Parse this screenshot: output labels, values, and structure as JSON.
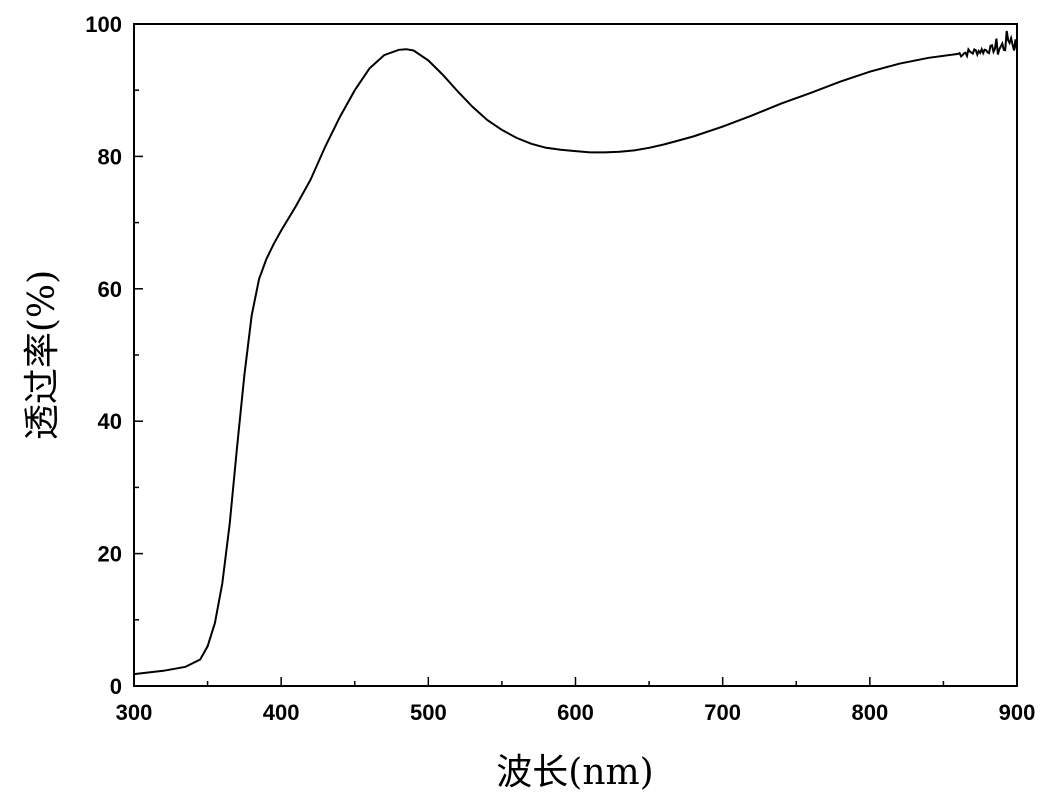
{
  "chart_data": {
    "type": "line",
    "xlabel": "波长(nm)",
    "ylabel": "透过率(%)",
    "xlim": [
      300,
      900
    ],
    "ylim": [
      0,
      100
    ],
    "x_ticks": [
      300,
      400,
      500,
      600,
      700,
      800,
      900
    ],
    "y_ticks": [
      0,
      20,
      40,
      60,
      80,
      100
    ],
    "grid": false,
    "series": [
      {
        "x": [
          300,
          320,
          335,
          345,
          350,
          355,
          360,
          365,
          370,
          375,
          380,
          385,
          390,
          395,
          400,
          410,
          420,
          430,
          440,
          450,
          460,
          470,
          480,
          485,
          490,
          500,
          510,
          520,
          530,
          540,
          550,
          560,
          570,
          580,
          590,
          600,
          610,
          620,
          630,
          640,
          650,
          660,
          680,
          700,
          720,
          740,
          760,
          780,
          800,
          820,
          840,
          860,
          880,
          890,
          895,
          900
        ],
        "y": [
          1.8,
          2.3,
          2.9,
          4.0,
          6.0,
          9.5,
          15.5,
          24.5,
          36.0,
          47.0,
          56.0,
          61.5,
          64.5,
          66.8,
          68.8,
          72.5,
          76.5,
          81.5,
          86.0,
          90.0,
          93.3,
          95.3,
          96.1,
          96.2,
          96.0,
          94.5,
          92.3,
          89.8,
          87.5,
          85.5,
          84.0,
          82.8,
          81.9,
          81.3,
          81.0,
          80.8,
          80.6,
          80.6,
          80.7,
          80.9,
          81.3,
          81.8,
          83.0,
          84.5,
          86.2,
          88.0,
          89.6,
          91.3,
          92.8,
          94.0,
          94.9,
          95.5,
          96.1,
          96.5,
          98.0,
          96.5
        ]
      }
    ]
  }
}
